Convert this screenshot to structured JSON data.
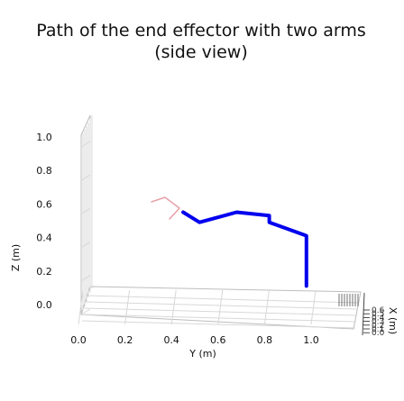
{
  "chart_data": {
    "type": "line",
    "title": "Path of the end effector with two arms",
    "subtitle": "(side view)",
    "xlabel": "Y (m)",
    "ylabel": "Z (m)",
    "zlabel": "X (m)",
    "view": "side",
    "projection": "3d",
    "xlim": [
      -0.05,
      1.2
    ],
    "ylim": [
      -0.05,
      1.1
    ],
    "x_ticks": [
      "0.0",
      "0.2",
      "0.4",
      "0.6",
      "0.8",
      "1.0"
    ],
    "x_tick_values": [
      0.0,
      0.2,
      0.4,
      0.6,
      0.8,
      1.0
    ],
    "y_ticks": [
      "0.0",
      "0.2",
      "0.4",
      "0.6",
      "0.8",
      "1.0"
    ],
    "y_tick_values": [
      0.0,
      0.2,
      0.4,
      0.6,
      0.8,
      1.0
    ],
    "depth_ticks": [
      "0.6",
      "0.5",
      "0.4",
      "0.3",
      "0.2",
      "0.1",
      "0.0"
    ],
    "grid": true,
    "legend": "none",
    "colors": {
      "path": "#0000ee",
      "user_annotation": "#e8a0a8",
      "grid": "#d8d8d8"
    },
    "series": [
      {
        "x": [
          0.45,
          0.52,
          0.68,
          0.82,
          0.82,
          0.98,
          0.98
        ],
        "y": [
          0.61,
          0.55,
          0.61,
          0.59,
          0.55,
          0.47,
          0.17
        ]
      }
    ]
  }
}
